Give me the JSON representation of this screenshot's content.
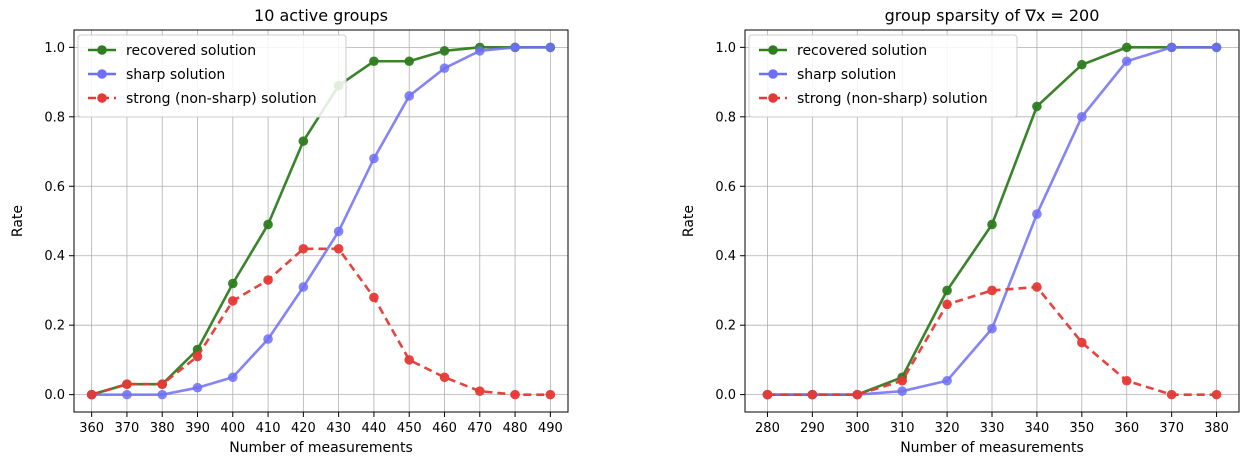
{
  "chart_data": [
    {
      "type": "line",
      "title": "10 active groups",
      "xlabel": "Number of measurements",
      "ylabel": "Rate",
      "x": [
        360,
        370,
        380,
        390,
        400,
        410,
        420,
        430,
        440,
        450,
        460,
        470,
        480,
        490
      ],
      "xlim": [
        355,
        495
      ],
      "ylim": [
        -0.05,
        1.05
      ],
      "yticks": [
        0.0,
        0.2,
        0.4,
        0.6,
        0.8,
        1.0
      ],
      "grid": true,
      "legend_position": "top-left",
      "series": [
        {
          "name": "recovered solution",
          "color": "#2e7d1f",
          "style": "solid",
          "values": [
            0.0,
            0.03,
            0.03,
            0.13,
            0.32,
            0.49,
            0.73,
            0.89,
            0.96,
            0.96,
            0.99,
            1.0,
            1.0,
            1.0
          ]
        },
        {
          "name": "sharp solution",
          "color": "#6f6ff5",
          "style": "solid",
          "values": [
            0.0,
            0.0,
            0.0,
            0.02,
            0.05,
            0.16,
            0.31,
            0.47,
            0.68,
            0.86,
            0.94,
            0.99,
            1.0,
            1.0
          ]
        },
        {
          "name": "strong (non-sharp) solution",
          "color": "#e53935",
          "style": "dashed",
          "values": [
            0.0,
            0.03,
            0.03,
            0.11,
            0.27,
            0.33,
            0.42,
            0.42,
            0.28,
            0.1,
            0.05,
            0.01,
            0.0,
            0.0
          ]
        }
      ]
    },
    {
      "type": "line",
      "title": "group sparsity of ∇x = 200",
      "xlabel": "Number of measurements",
      "ylabel": "Rate",
      "x": [
        280,
        290,
        300,
        310,
        320,
        330,
        340,
        350,
        360,
        370,
        380
      ],
      "xlim": [
        275,
        385
      ],
      "ylim": [
        -0.05,
        1.05
      ],
      "yticks": [
        0.0,
        0.2,
        0.4,
        0.6,
        0.8,
        1.0
      ],
      "grid": true,
      "legend_position": "top-left",
      "series": [
        {
          "name": "recovered solution",
          "color": "#2e7d1f",
          "style": "solid",
          "values": [
            0.0,
            0.0,
            0.0,
            0.05,
            0.3,
            0.49,
            0.83,
            0.95,
            1.0,
            1.0,
            1.0
          ]
        },
        {
          "name": "sharp solution",
          "color": "#6f6ff5",
          "style": "solid",
          "values": [
            0.0,
            0.0,
            0.0,
            0.01,
            0.04,
            0.19,
            0.52,
            0.8,
            0.96,
            1.0,
            1.0
          ]
        },
        {
          "name": "strong (non-sharp) solution",
          "color": "#e53935",
          "style": "dashed",
          "values": [
            0.0,
            0.0,
            0.0,
            0.04,
            0.26,
            0.3,
            0.31,
            0.15,
            0.04,
            0.0,
            0.0
          ]
        }
      ]
    }
  ]
}
